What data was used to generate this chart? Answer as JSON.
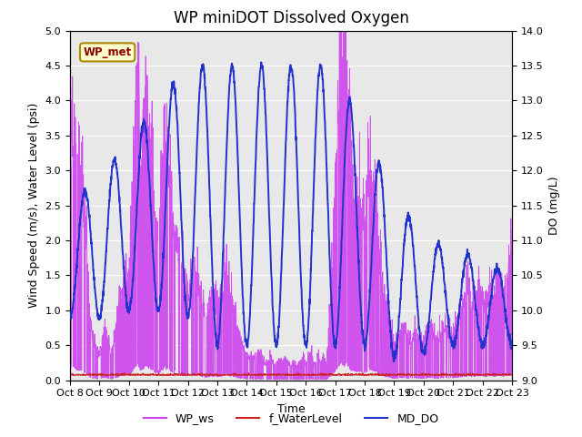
{
  "title": "WP miniDOT Dissolved Oxygen",
  "xlabel": "Time",
  "ylabel_left": "Wind Speed (m/s), Water Level (psi)",
  "ylabel_right": "DO (mg/L)",
  "xlim_days": [
    0,
    15
  ],
  "ylim_left": [
    0.0,
    5.0
  ],
  "ylim_right": [
    9.0,
    14.0
  ],
  "yticks_left": [
    0.0,
    0.5,
    1.0,
    1.5,
    2.0,
    2.5,
    3.0,
    3.5,
    4.0,
    4.5,
    5.0
  ],
  "yticks_right": [
    9.0,
    9.5,
    10.0,
    10.5,
    11.0,
    11.5,
    12.0,
    12.5,
    13.0,
    13.5,
    14.0
  ],
  "xtick_labels": [
    "Oct 8",
    "Oct 9",
    "Oct 10",
    "Oct 11",
    "Oct 12",
    "Oct 13",
    "Oct 14",
    "Oct 15",
    "Oct 16",
    "Oct 17",
    "Oct 18",
    "Oct 19",
    "Oct 20",
    "Oct 21",
    "Oct 22",
    "Oct 23"
  ],
  "xtick_positions": [
    0,
    1,
    2,
    3,
    4,
    5,
    6,
    7,
    8,
    9,
    10,
    11,
    12,
    13,
    14,
    15
  ],
  "color_ws": "#cc44ee",
  "color_wl": "#cc2222",
  "color_do": "#2233cc",
  "bg_color": "#e8e8e8",
  "legend_labels": [
    "WP_ws",
    "f_WaterLevel",
    "MD_DO"
  ],
  "box_label": "WP_met",
  "box_facecolor": "#ffffcc",
  "box_edgecolor": "#aa8800",
  "title_fontsize": 12,
  "axis_label_fontsize": 9,
  "tick_fontsize": 8
}
